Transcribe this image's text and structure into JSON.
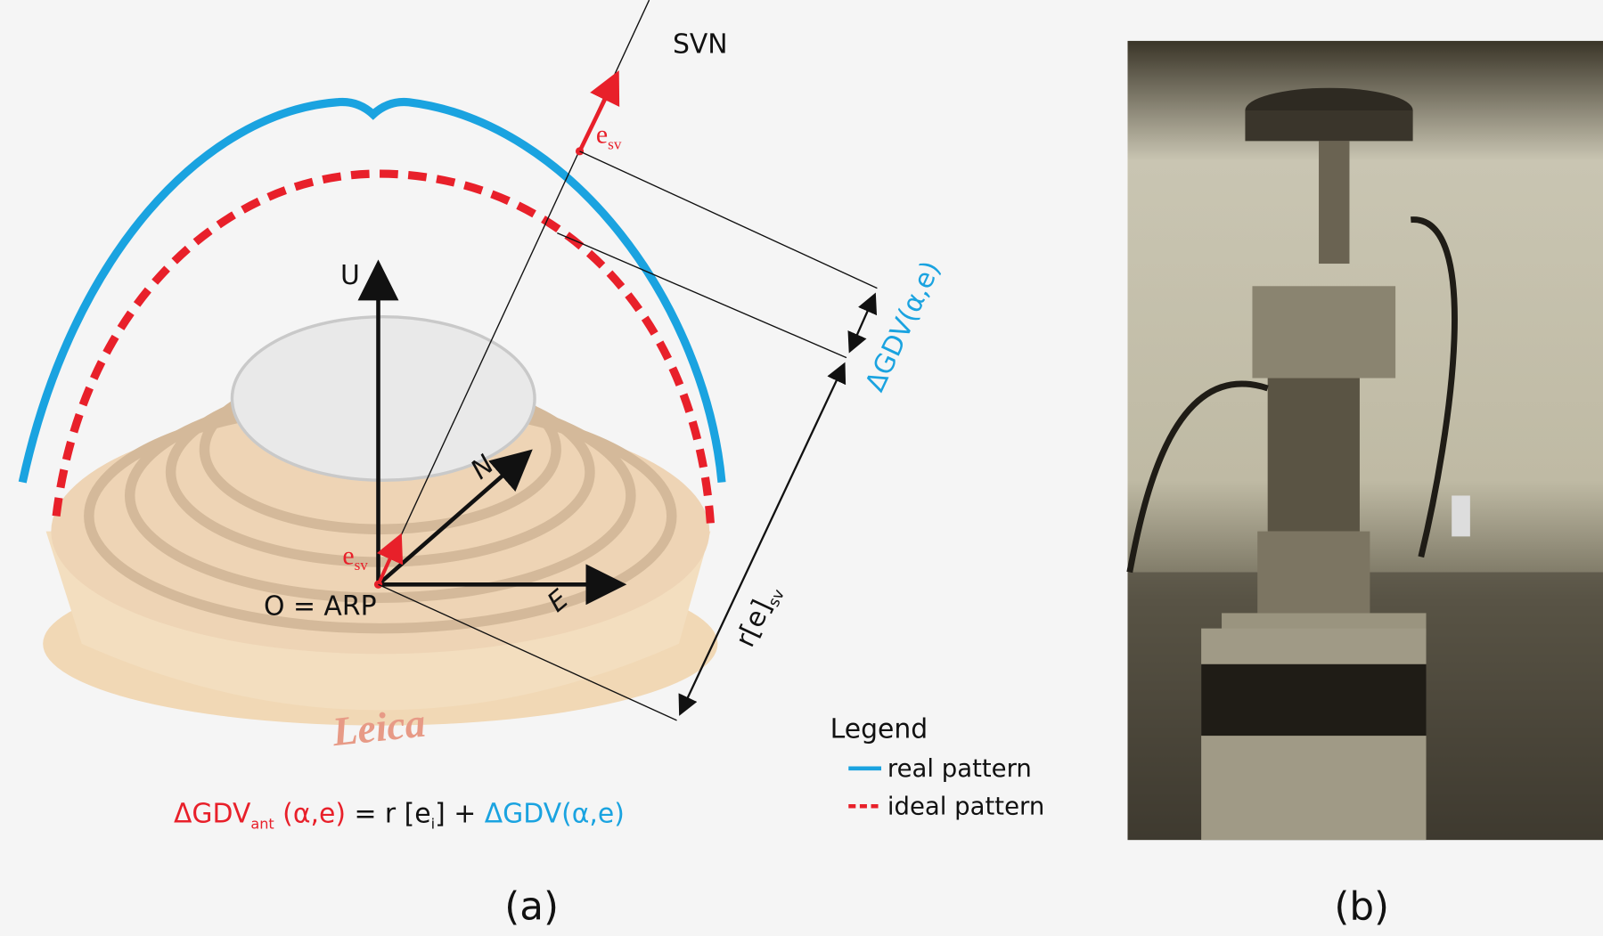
{
  "panel_a": {
    "svn": "SVN",
    "esv_top": {
      "base": "e",
      "sub": "sv"
    },
    "esv_origin": {
      "base": "e",
      "sub": "sv"
    },
    "axis_u": "U",
    "axis_n": "N",
    "axis_e": "E",
    "origin": "O = ARP",
    "delta_gdv": "ΔGDV(α,e)",
    "range": {
      "base": "r[e]",
      "sub": "sv"
    },
    "brand": "Leica",
    "legend": {
      "title": "Legend",
      "items": [
        "real pattern",
        "ideal pattern"
      ]
    },
    "formula": {
      "lhs": "ΔGDV",
      "lhs_sub": "ant",
      "lhs_args": " (α,e)",
      "eq": " = r [e",
      "eq_sub": "i",
      "plus": "] + ",
      "rhs": "ΔGDV(α,e)"
    },
    "caption": "(a)"
  },
  "panel_b": {
    "caption": "(b)"
  }
}
